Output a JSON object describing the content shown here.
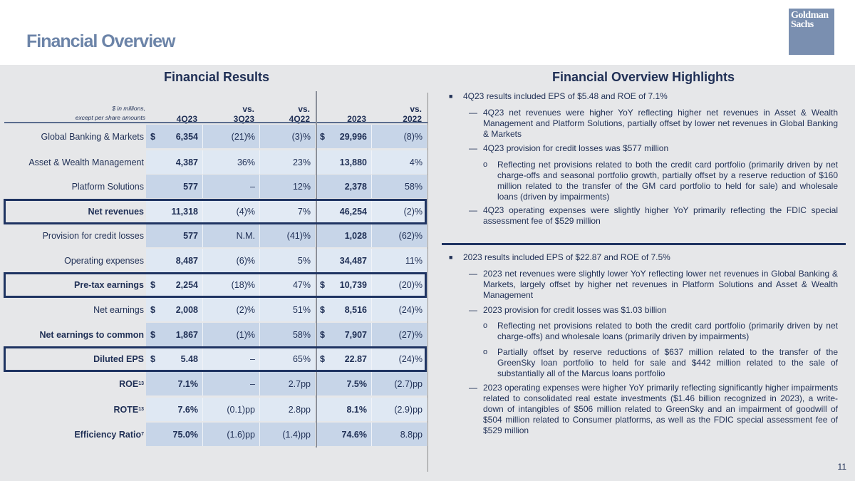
{
  "title": "Financial Overview",
  "logo": "Goldman Sachs",
  "left_heading": "Financial Results",
  "right_heading": "Financial Overview Highlights",
  "units": [
    "$ in millions,",
    "except per share amounts"
  ],
  "columns": [
    [
      "",
      "4Q23"
    ],
    [
      "vs.",
      "3Q23"
    ],
    [
      "vs.",
      "4Q22"
    ],
    [
      "",
      "2023"
    ],
    [
      "vs.",
      "2022"
    ]
  ],
  "rows": [
    {
      "label": "Global Banking & Markets",
      "sup": "",
      "bold": false,
      "boxed": false,
      "dollar4q": true,
      "dollarfy": true,
      "values": [
        "6,354",
        "(21)%",
        "(3)%",
        "29,996",
        "(8)%"
      ]
    },
    {
      "label": "Asset & Wealth Management",
      "sup": "",
      "bold": false,
      "boxed": false,
      "dollar4q": false,
      "dollarfy": false,
      "values": [
        "4,387",
        "36%",
        "23%",
        "13,880",
        "4%"
      ]
    },
    {
      "label": "Platform Solutions",
      "sup": "",
      "bold": false,
      "boxed": false,
      "dollar4q": false,
      "dollarfy": false,
      "values": [
        "577",
        "–",
        "12%",
        "2,378",
        "58%"
      ]
    },
    {
      "label": "Net revenues",
      "sup": "",
      "bold": true,
      "boxed": true,
      "dollar4q": false,
      "dollarfy": false,
      "values": [
        "11,318",
        "(4)%",
        "7%",
        "46,254",
        "(2)%"
      ]
    },
    {
      "label": "Provision for credit losses",
      "sup": "",
      "bold": false,
      "boxed": false,
      "dollar4q": false,
      "dollarfy": false,
      "values": [
        "577",
        "N.M.",
        "(41)%",
        "1,028",
        "(62)%"
      ]
    },
    {
      "label": "Operating expenses",
      "sup": "",
      "bold": false,
      "boxed": false,
      "dollar4q": false,
      "dollarfy": false,
      "values": [
        "8,487",
        "(6)%",
        "5%",
        "34,487",
        "11%"
      ]
    },
    {
      "label": "Pre-tax earnings",
      "sup": "",
      "bold": true,
      "boxed": true,
      "dollar4q": true,
      "dollarfy": true,
      "values": [
        "2,254",
        "(18)%",
        "47%",
        "10,739",
        "(20)%"
      ]
    },
    {
      "label": "Net earnings",
      "sup": "",
      "bold": false,
      "boxed": false,
      "dollar4q": true,
      "dollarfy": true,
      "values": [
        "2,008",
        "(2)%",
        "51%",
        "8,516",
        "(24)%"
      ]
    },
    {
      "label": "Net earnings to common",
      "sup": "",
      "bold": true,
      "boxed": false,
      "dollar4q": true,
      "dollarfy": true,
      "values": [
        "1,867",
        "(1)%",
        "58%",
        "7,907",
        "(27)%"
      ]
    },
    {
      "label": "Diluted EPS",
      "sup": "",
      "bold": true,
      "boxed": true,
      "dollar4q": true,
      "dollarfy": true,
      "values": [
        "5.48",
        "–",
        "65%",
        "22.87",
        "(24)%"
      ]
    },
    {
      "label": "ROE",
      "sup": "13",
      "bold": true,
      "boxed": false,
      "dollar4q": false,
      "dollarfy": false,
      "values": [
        "7.1%",
        "–",
        "2.7pp",
        "7.5%",
        "(2.7)pp"
      ]
    },
    {
      "label": "ROTE",
      "sup": "13",
      "bold": true,
      "boxed": false,
      "dollar4q": false,
      "dollarfy": false,
      "values": [
        "7.6%",
        "(0.1)pp",
        "2.8pp",
        "8.1%",
        "(2.9)pp"
      ]
    },
    {
      "label": "Efficiency Ratio",
      "sup": "7",
      "bold": true,
      "boxed": false,
      "dollar4q": false,
      "dollarfy": false,
      "values": [
        "75.0%",
        "(1.6)pp",
        "(1.4)pp",
        "74.6%",
        "8.8pp"
      ]
    }
  ],
  "dollar_sign": "$",
  "highlights": [
    {
      "marker": "■",
      "indent": 0,
      "text": "4Q23 results included EPS of $5.48 and ROE of 7.1%"
    },
    {
      "marker": "—",
      "indent": 1,
      "text": "4Q23 net revenues were higher YoY reflecting higher net revenues in Asset & Wealth Management and Platform Solutions, partially offset by lower net revenues in Global Banking & Markets"
    },
    {
      "marker": "—",
      "indent": 1,
      "text": "4Q23 provision for credit losses was $577 million"
    },
    {
      "marker": "o",
      "indent": 2,
      "text": "Reflecting net provisions related to both the credit card portfolio (primarily driven by net charge-offs and seasonal portfolio growth, partially offset by a reserve reduction of $160 million related to the transfer of the GM card portfolio to held for sale) and wholesale loans (driven by impairments)"
    },
    {
      "marker": "—",
      "indent": 1,
      "text": "4Q23 operating expenses were slightly higher YoY primarily reflecting the FDIC special assessment fee of $529 million"
    },
    {
      "marker": "■",
      "indent": 0,
      "text": "2023 results included EPS of $22.87 and ROE of 7.5%"
    },
    {
      "marker": "—",
      "indent": 1,
      "text": "2023 net revenues were slightly lower YoY reflecting lower net revenues in Global Banking & Markets, largely offset by higher net revenues in Platform Solutions and Asset & Wealth Management"
    },
    {
      "marker": "—",
      "indent": 1,
      "text": "2023 provision for credit losses was $1.03 billion"
    },
    {
      "marker": "o",
      "indent": 2,
      "text": "Reflecting net provisions related to both the credit card portfolio (primarily driven by net charge-offs) and wholesale loans (primarily driven by impairments)"
    },
    {
      "marker": "o",
      "indent": 2,
      "text": "Partially offset by reserve reductions of $637 million related to the transfer of the GreenSky loan portfolio to held for sale and $442 million related to the sale of substantially all of the Marcus loans portfolio"
    },
    {
      "marker": "—",
      "indent": 1,
      "text": "2023 operating expenses were higher YoY primarily reflecting significantly higher impairments related to consolidated real estate investments ($1.46 billion recognized in 2023), a write-down of intangibles of $506 million related to GreenSky and an impairment of goodwill of $504 million related to Consumer platforms, as well as the FDIC special assessment fee of $529 million"
    }
  ],
  "page_number": "11"
}
